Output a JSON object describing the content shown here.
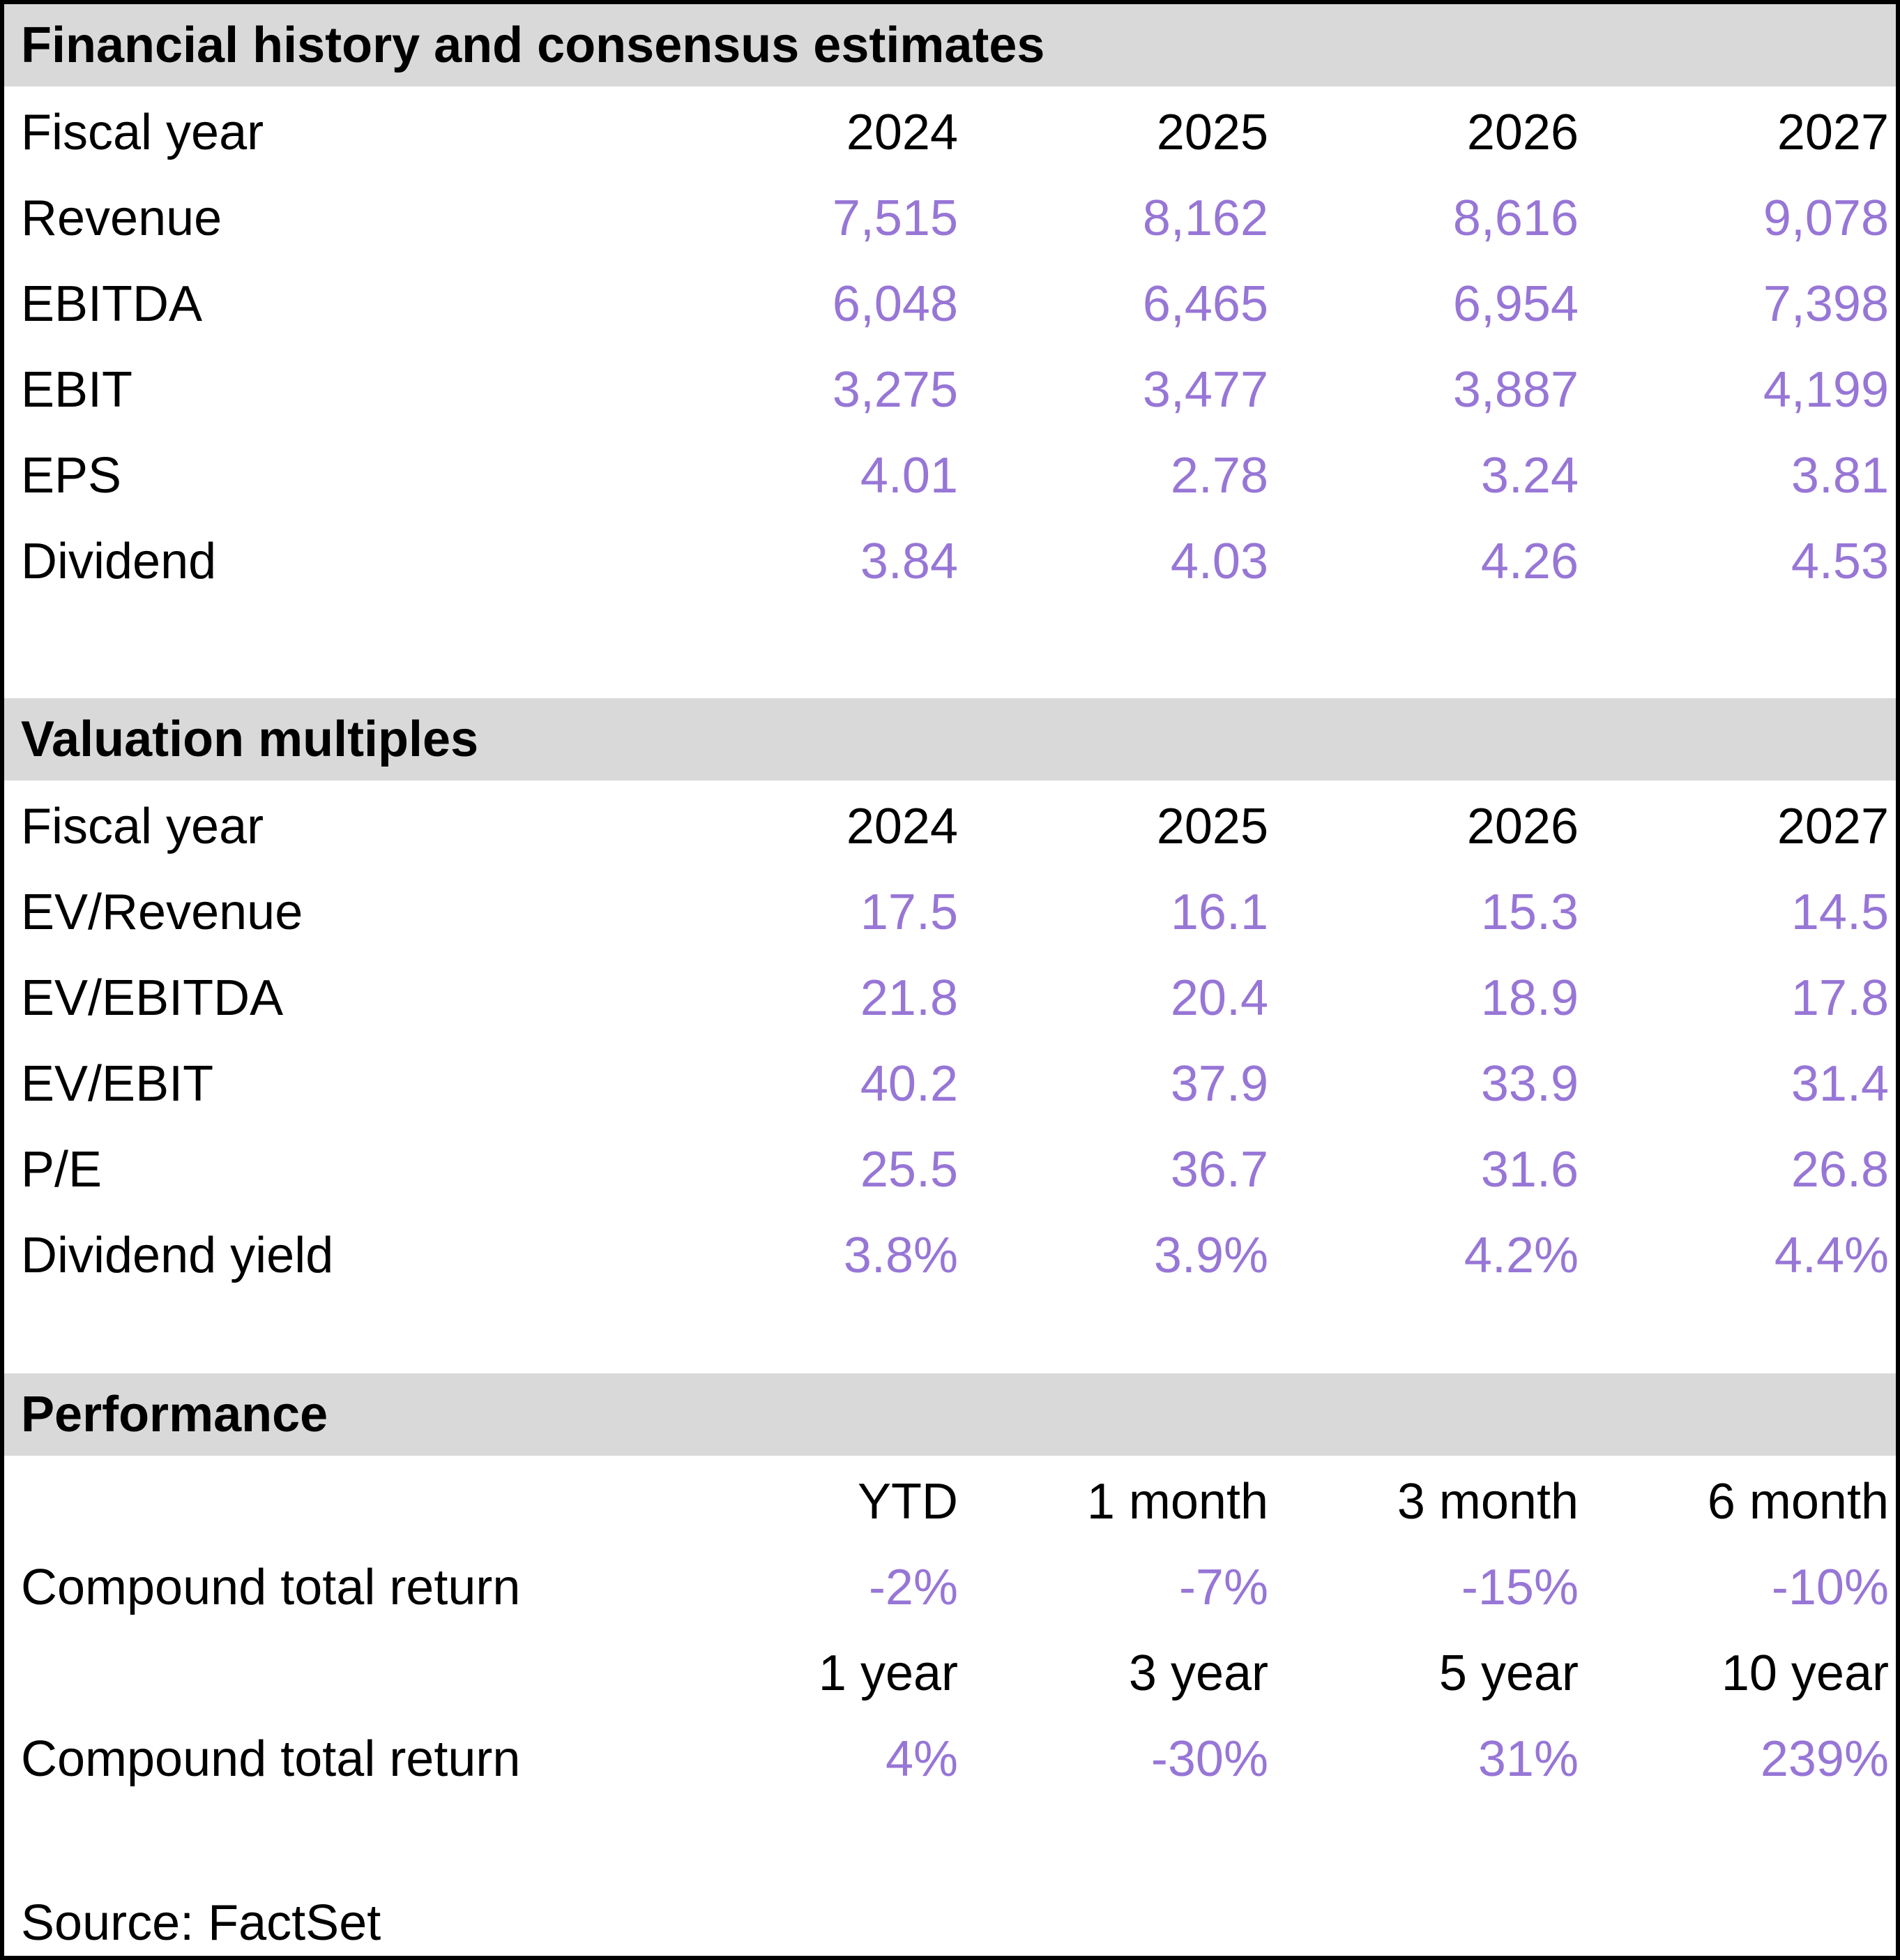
{
  "colors": {
    "accent_purple": "#9776d6",
    "section_band_gray": "#d9d9d9",
    "border_black": "#000000",
    "background_white": "#ffffff"
  },
  "sections": [
    {
      "title": "Financial history and consensus estimates",
      "header_row": {
        "label": "Fiscal year",
        "cols": [
          "2024",
          "2025",
          "2026",
          "2027"
        ]
      },
      "rows": [
        {
          "label": "Revenue",
          "values": [
            "7,515",
            "8,162",
            "8,616",
            "9,078"
          ]
        },
        {
          "label": "EBITDA",
          "values": [
            "6,048",
            "6,465",
            "6,954",
            "7,398"
          ]
        },
        {
          "label": "EBIT",
          "values": [
            "3,275",
            "3,477",
            "3,887",
            "4,199"
          ]
        },
        {
          "label": "EPS",
          "values": [
            "4.01",
            "2.78",
            "3.24",
            "3.81"
          ]
        },
        {
          "label": "Dividend",
          "values": [
            "3.84",
            "4.03",
            "4.26",
            "4.53"
          ]
        }
      ]
    },
    {
      "title": "Valuation multiples",
      "header_row": {
        "label": "Fiscal year",
        "cols": [
          "2024",
          "2025",
          "2026",
          "2027"
        ]
      },
      "rows": [
        {
          "label": "EV/Revenue",
          "values": [
            "17.5",
            "16.1",
            "15.3",
            "14.5"
          ]
        },
        {
          "label": "EV/EBITDA",
          "values": [
            "21.8",
            "20.4",
            "18.9",
            "17.8"
          ]
        },
        {
          "label": "EV/EBIT",
          "values": [
            "40.2",
            "37.9",
            "33.9",
            "31.4"
          ]
        },
        {
          "label": "P/E",
          "values": [
            "25.5",
            "36.7",
            "31.6",
            "26.8"
          ]
        },
        {
          "label": "Dividend yield",
          "values": [
            "3.8%",
            "3.9%",
            "4.2%",
            "4.4%"
          ]
        }
      ]
    },
    {
      "title": "Performance",
      "groups": [
        {
          "header_cols": [
            "YTD",
            "1 month",
            "3 month",
            "6 month"
          ],
          "row": {
            "label": "Compound total return",
            "values": [
              "-2%",
              "-7%",
              "-15%",
              "-10%"
            ]
          }
        },
        {
          "header_cols": [
            "1 year",
            "3 year",
            "5 year",
            "10 year"
          ],
          "row": {
            "label": "Compound total return",
            "values": [
              "4%",
              "-30%",
              "31%",
              "239%"
            ]
          }
        }
      ]
    }
  ],
  "footer": {
    "source": "Source: FactSet"
  }
}
